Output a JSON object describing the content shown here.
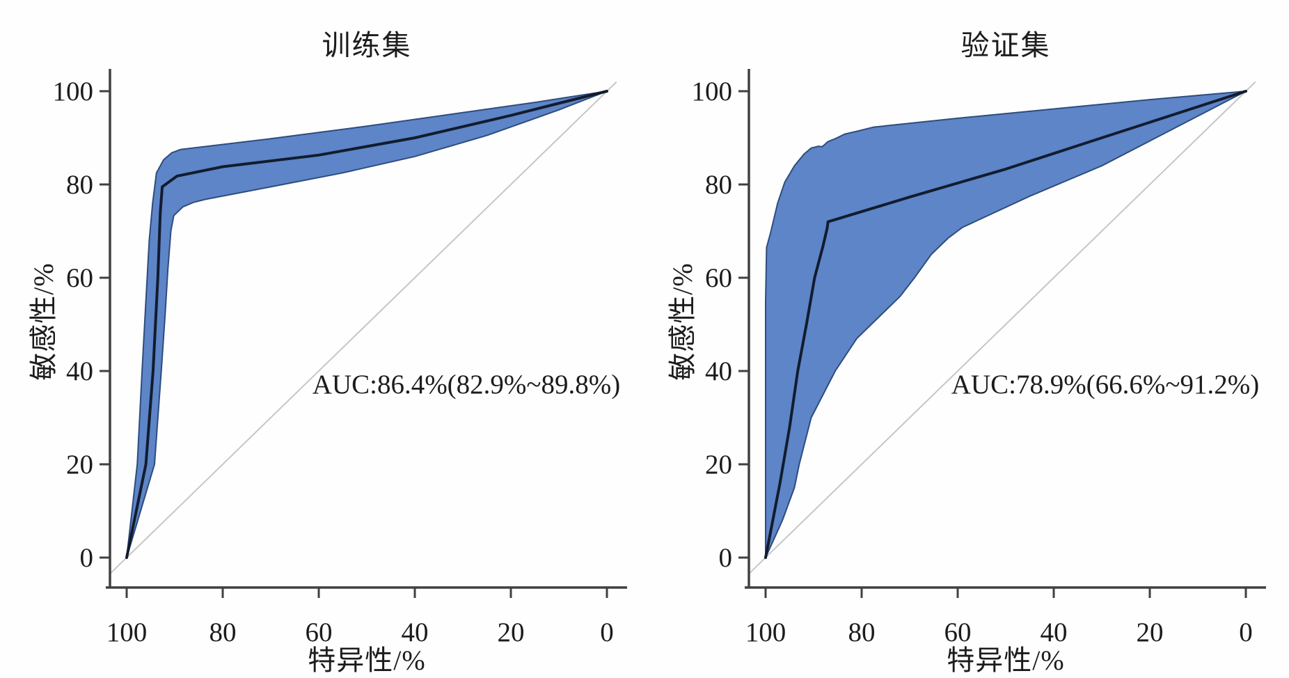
{
  "figure": {
    "colors": {
      "band_fill": "#5d85c8",
      "band_edge": "#2e4c7c",
      "roc_line": "#131c2e",
      "reference_line": "#c6c6c6",
      "axis": "#404040",
      "text": "#1c1c1c",
      "background": "#fefefe"
    }
  },
  "chart_data": [
    {
      "type": "line",
      "subtype": "roc-curve-with-confidence-band",
      "title": "训练集",
      "xlabel": "特异性/%",
      "ylabel": "敏感性/%",
      "annotation": "AUC:86.4%(82.9%~89.8%)",
      "auc": {
        "value_pct": 86.4,
        "ci_low_pct": 82.9,
        "ci_high_pct": 89.8
      },
      "x_axis": {
        "label": "特异性/%",
        "range": [
          100,
          0
        ],
        "reversed": true,
        "ticks": [
          100,
          80,
          60,
          40,
          20,
          0
        ]
      },
      "y_axis": {
        "label": "敏感性/%",
        "range": [
          0,
          100
        ],
        "ticks": [
          0,
          20,
          40,
          60,
          80,
          100
        ]
      },
      "grid": false,
      "legend": "none",
      "reference_line": {
        "from_spec_sens": [
          100,
          0
        ],
        "to_spec_sens": [
          0,
          100
        ]
      },
      "series": [
        {
          "name": "roc-main",
          "role": "main",
          "points_spec_sens": [
            [
              100,
              0
            ],
            [
              96,
              20
            ],
            [
              94.5,
              40
            ],
            [
              93.5,
              60
            ],
            [
              93,
              74
            ],
            [
              92.6,
              79.5
            ],
            [
              89.5,
              81.8
            ],
            [
              80,
              83.8
            ],
            [
              60,
              86.3
            ],
            [
              40,
              90
            ],
            [
              20,
              94.8
            ],
            [
              0,
              100
            ]
          ]
        },
        {
          "name": "ci-upper",
          "role": "band-upper",
          "points_spec_sens": [
            [
              100,
              0
            ],
            [
              97.8,
              20
            ],
            [
              96.8,
              40
            ],
            [
              96,
              55
            ],
            [
              95.3,
              68
            ],
            [
              94.6,
              76
            ],
            [
              93.8,
              82.5
            ],
            [
              92.3,
              85.3
            ],
            [
              90.6,
              86.8
            ],
            [
              88.8,
              87.5
            ],
            [
              70,
              89.8
            ],
            [
              50,
              92.5
            ],
            [
              30,
              95.4
            ],
            [
              15,
              97.6
            ],
            [
              0,
              100
            ]
          ]
        },
        {
          "name": "ci-lower",
          "role": "band-lower",
          "points_spec_sens": [
            [
              100,
              0
            ],
            [
              94.2,
              20
            ],
            [
              92.8,
              40
            ],
            [
              92,
              52
            ],
            [
              91.4,
              62
            ],
            [
              90.8,
              70
            ],
            [
              90.2,
              73.3
            ],
            [
              88.3,
              75.2
            ],
            [
              86,
              76.2
            ],
            [
              83.6,
              76.8
            ],
            [
              70,
              79.5
            ],
            [
              55,
              82.5
            ],
            [
              40,
              86
            ],
            [
              25,
              90.5
            ],
            [
              10,
              96
            ],
            [
              0,
              100
            ]
          ]
        }
      ]
    },
    {
      "type": "line",
      "subtype": "roc-curve-with-confidence-band",
      "title": "验证集",
      "xlabel": "特异性/%",
      "ylabel": "敏感性/%",
      "annotation": "AUC:78.9%(66.6%~91.2%)",
      "auc": {
        "value_pct": 78.9,
        "ci_low_pct": 66.6,
        "ci_high_pct": 91.2
      },
      "x_axis": {
        "label": "特异性/%",
        "range": [
          100,
          0
        ],
        "reversed": true,
        "ticks": [
          100,
          80,
          60,
          40,
          20,
          0
        ]
      },
      "y_axis": {
        "label": "敏感性/%",
        "range": [
          0,
          100
        ],
        "ticks": [
          0,
          20,
          40,
          60,
          80,
          100
        ]
      },
      "grid": false,
      "legend": "none",
      "reference_line": {
        "from_spec_sens": [
          100,
          0
        ],
        "to_spec_sens": [
          0,
          100
        ]
      },
      "series": [
        {
          "name": "roc-main",
          "role": "main",
          "points_spec_sens": [
            [
              100,
              0
            ],
            [
              97,
              16
            ],
            [
              95,
              28
            ],
            [
              93.3,
              40
            ],
            [
              91.5,
              50
            ],
            [
              89.8,
              60
            ],
            [
              88,
              67
            ],
            [
              87.2,
              70.5
            ],
            [
              87,
              72
            ],
            [
              70,
              77.3
            ],
            [
              50,
              83.3
            ],
            [
              30,
              90
            ],
            [
              15,
              95
            ],
            [
              0,
              100
            ]
          ]
        },
        {
          "name": "ci-upper",
          "role": "band-upper",
          "points_spec_sens": [
            [
              100,
              0
            ],
            [
              100,
              30
            ],
            [
              100,
              55
            ],
            [
              99.8,
              66.5
            ],
            [
              99,
              69.5
            ],
            [
              97.5,
              76
            ],
            [
              96,
              80.5
            ],
            [
              94,
              84
            ],
            [
              92,
              86.5
            ],
            [
              90.5,
              87.8
            ],
            [
              89,
              88.2
            ],
            [
              88.2,
              88.1
            ],
            [
              87,
              89.2
            ],
            [
              85.5,
              89.8
            ],
            [
              83.5,
              90.8
            ],
            [
              81,
              91.4
            ],
            [
              77.5,
              92.3
            ],
            [
              60,
              94.2
            ],
            [
              40,
              96.2
            ],
            [
              20,
              98.2
            ],
            [
              0,
              100
            ]
          ]
        },
        {
          "name": "ci-lower",
          "role": "band-lower",
          "points_spec_sens": [
            [
              100,
              0
            ],
            [
              96.5,
              8
            ],
            [
              94,
              15
            ],
            [
              93,
              20
            ],
            [
              90.5,
              30
            ],
            [
              85.5,
              40
            ],
            [
              81,
              47
            ],
            [
              76,
              52
            ],
            [
              72,
              56
            ],
            [
              69,
              60
            ],
            [
              65.5,
              65
            ],
            [
              62,
              68.5
            ],
            [
              59,
              70.8
            ],
            [
              45,
              77.5
            ],
            [
              30,
              84
            ],
            [
              15,
              92
            ],
            [
              0,
              100
            ]
          ]
        }
      ]
    }
  ]
}
